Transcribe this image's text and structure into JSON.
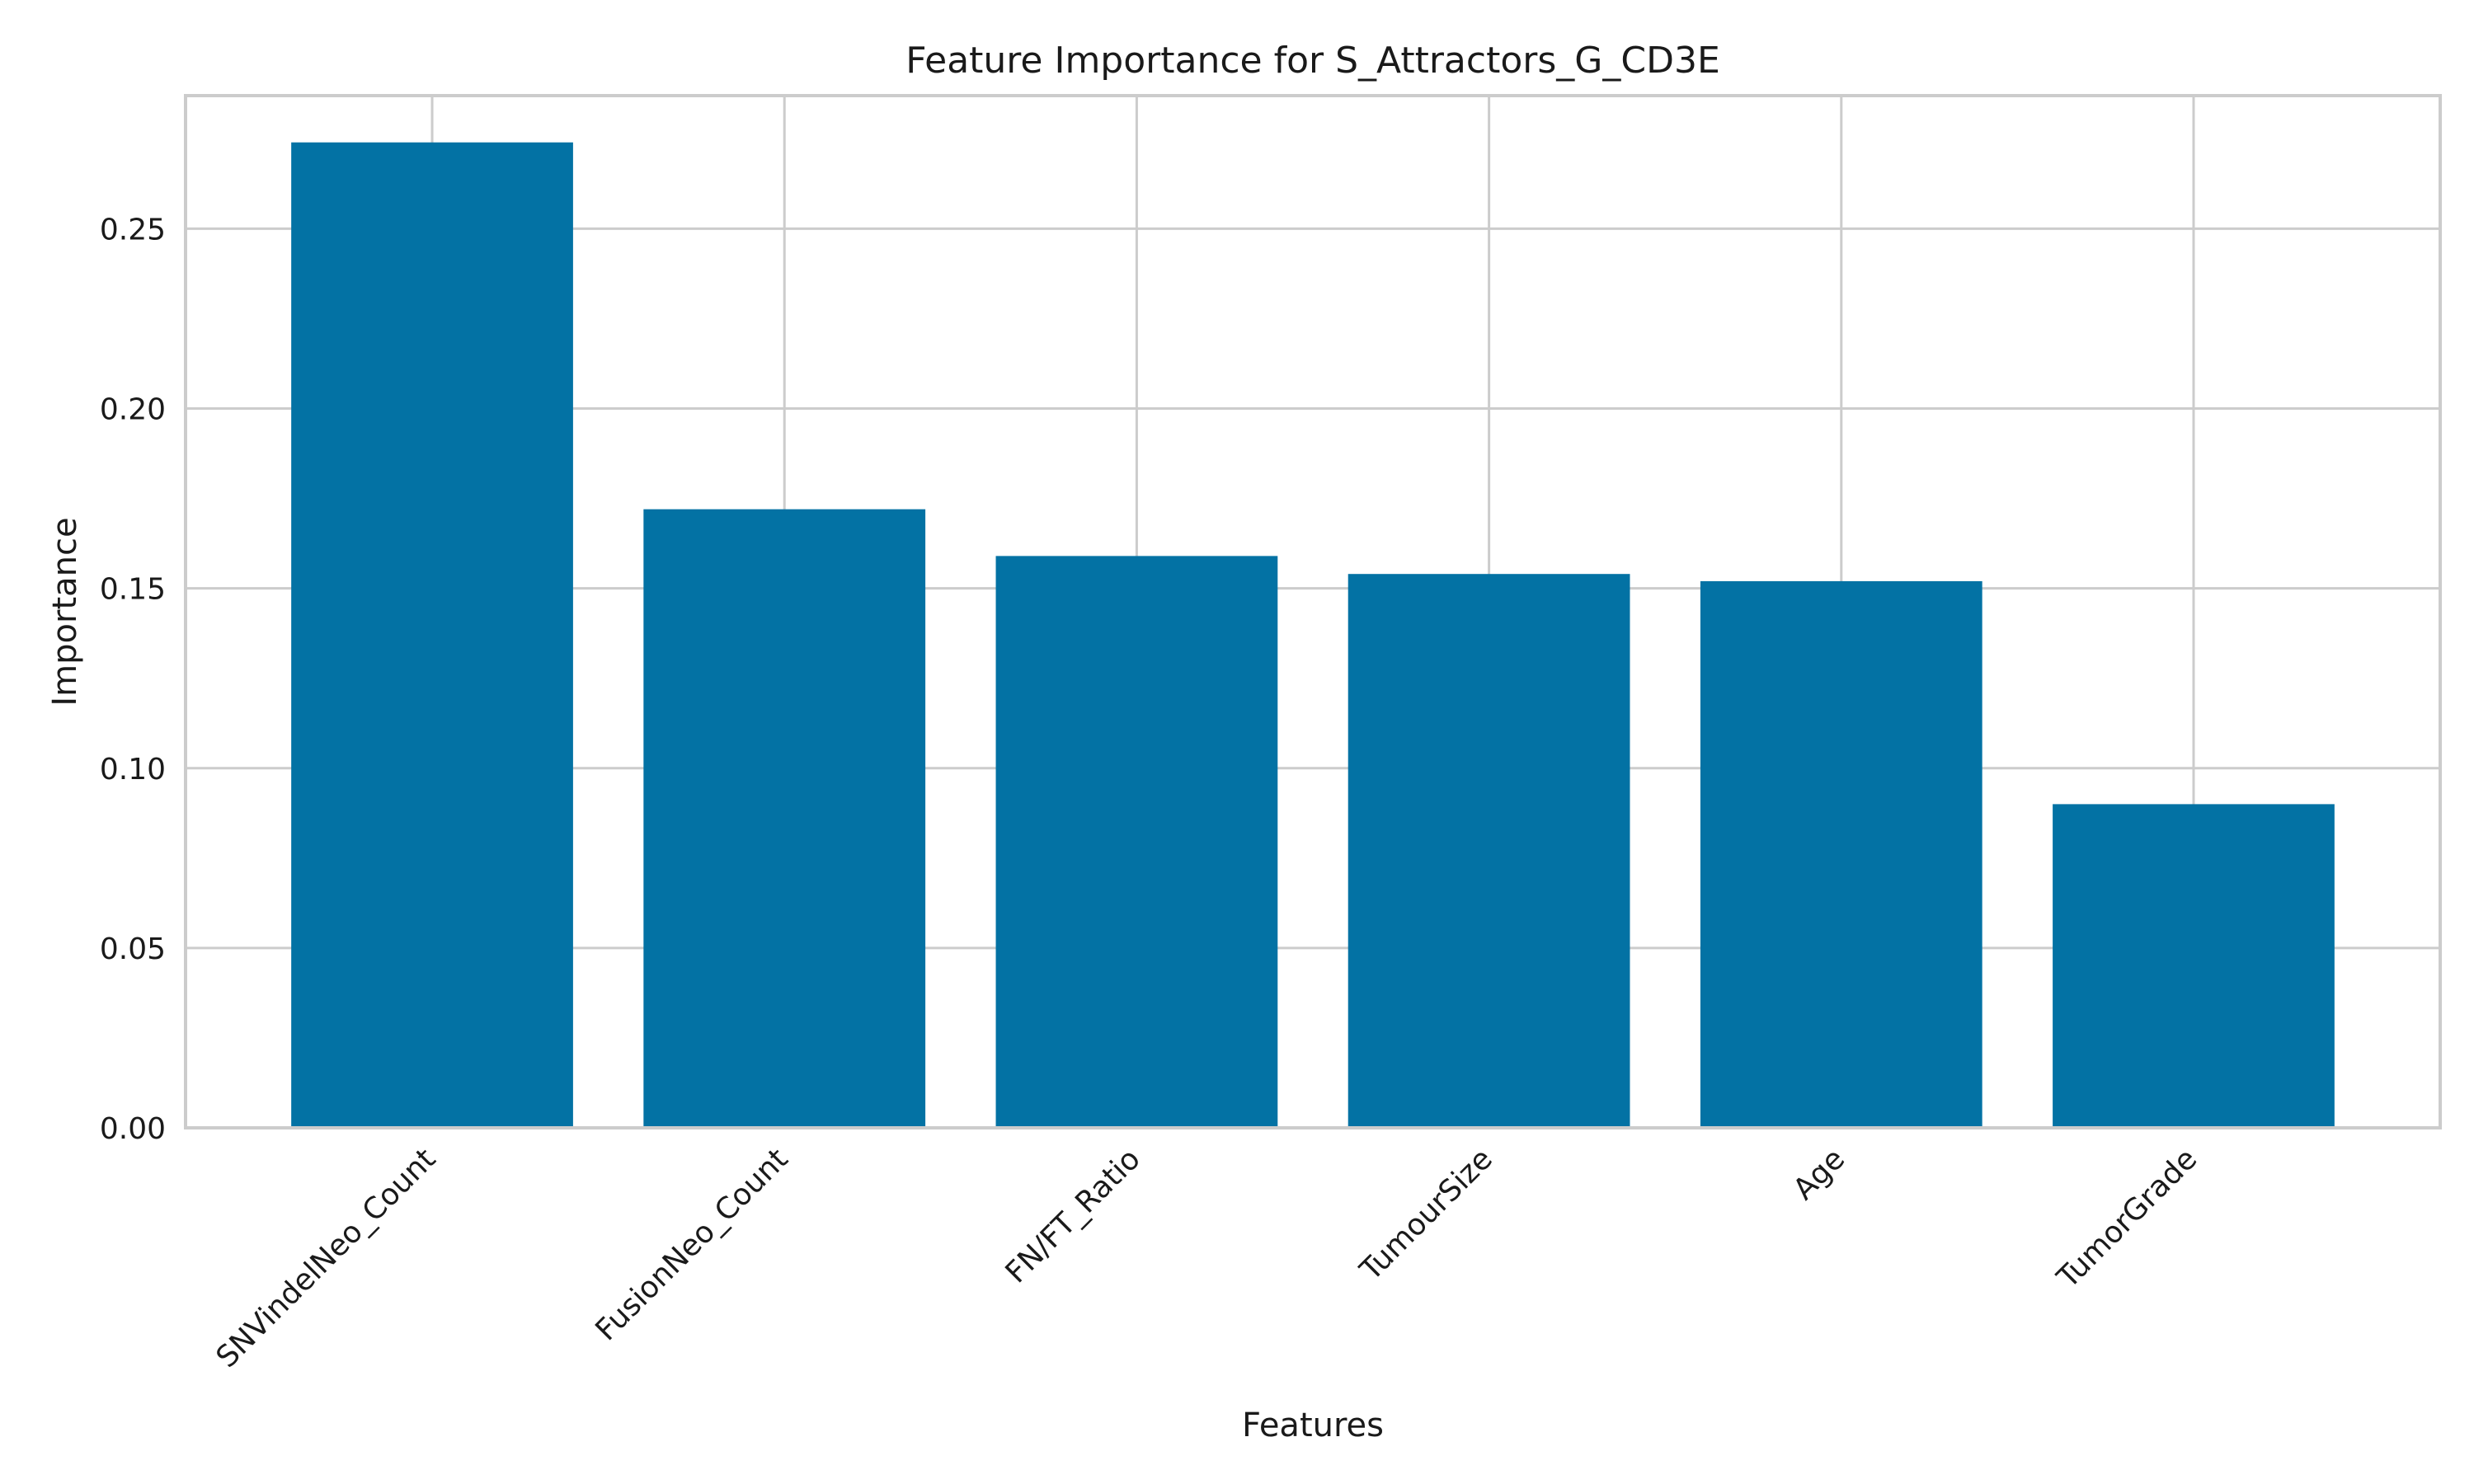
{
  "chart_data": {
    "type": "bar",
    "title": "Feature Importance for S_Attractors_G_CD3E",
    "xlabel": "Features",
    "ylabel": "Importance",
    "categories": [
      "SNVindelNeo_Count",
      "FusionNeo_Count",
      "FN/FT_Ratio",
      "TumourSize",
      "Age",
      "TumorGrade"
    ],
    "values": [
      0.274,
      0.172,
      0.159,
      0.154,
      0.152,
      0.09
    ],
    "ylim": [
      0,
      0.287
    ],
    "yticks": [
      "0.00",
      "0.05",
      "0.10",
      "0.15",
      "0.20",
      "0.25"
    ],
    "grid": true,
    "bar_color": "#0372a4",
    "grid_color": "#cccccc"
  }
}
